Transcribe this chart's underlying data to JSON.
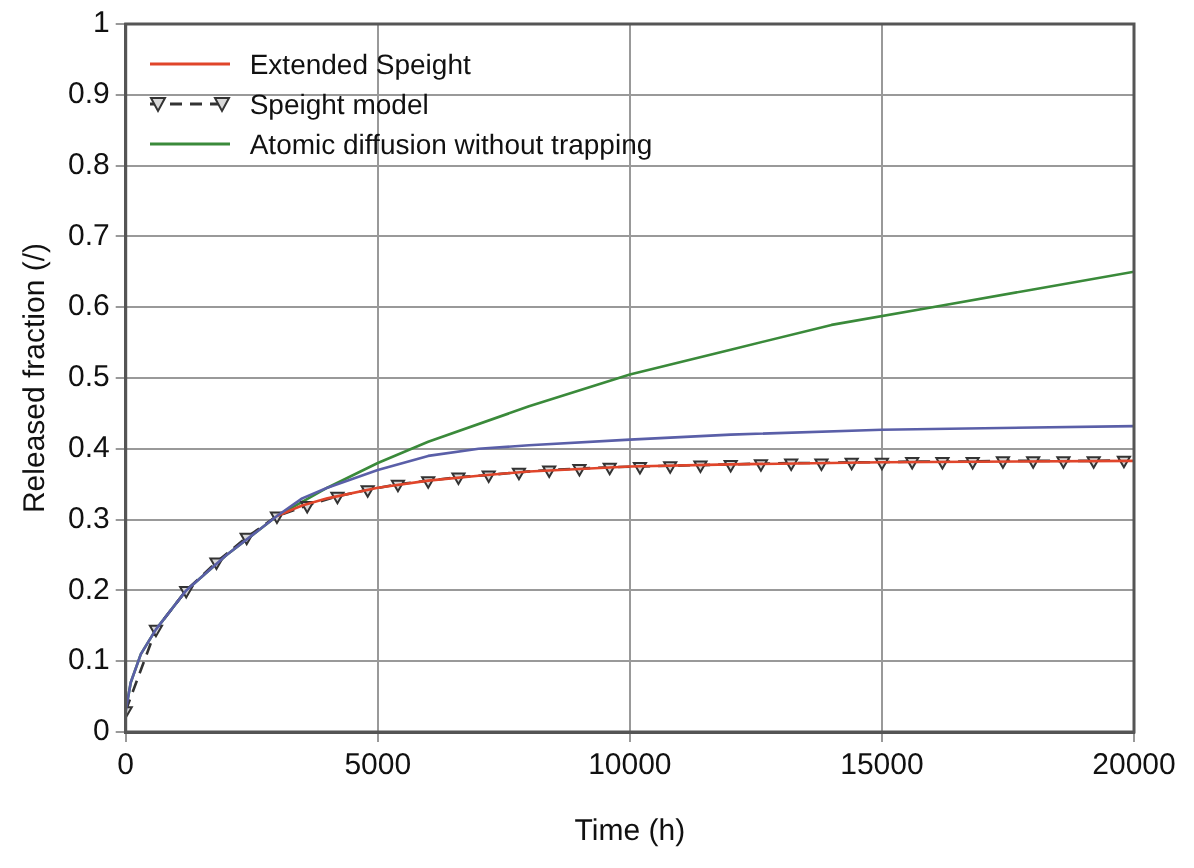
{
  "chart_data": {
    "type": "line",
    "xlabel": "Time (h)",
    "ylabel": "Released fraction (/)",
    "xlim": [
      0,
      20000
    ],
    "xticks": [
      0,
      5000,
      10000,
      15000,
      20000
    ],
    "ylim": [
      0,
      1
    ],
    "yticks": [
      0,
      0.1,
      0.2,
      0.3,
      0.4,
      0.5,
      0.6,
      0.7,
      0.8,
      0.9,
      1
    ],
    "grid": true,
    "legend": "top left",
    "series": [
      {
        "color": "#5a5fa8",
        "line_style": "solid",
        "marker": "none",
        "x": [
          0,
          100,
          300,
          600,
          1200,
          2000,
          3000,
          3500,
          4000,
          5000,
          6000,
          7000,
          8000,
          10000,
          12000,
          15000,
          20000
        ],
        "values": [
          0.03,
          0.07,
          0.11,
          0.145,
          0.2,
          0.25,
          0.305,
          0.33,
          0.345,
          0.37,
          0.39,
          0.4,
          0.405,
          0.413,
          0.42,
          0.427,
          0.432
        ]
      },
      {
        "name": "Extended Speight",
        "color": "#e0452a",
        "line_style": "solid",
        "marker": "none",
        "x": [
          3000,
          3500,
          4000,
          5000,
          6000,
          7000,
          8000,
          10000,
          12000,
          15000,
          20000
        ],
        "values": [
          0.305,
          0.32,
          0.33,
          0.345,
          0.355,
          0.362,
          0.368,
          0.375,
          0.378,
          0.381,
          0.383
        ]
      },
      {
        "name": "Speight model",
        "color": "#333333",
        "line_style": "dashed",
        "marker": "triangle",
        "x": [
          0,
          600,
          1200,
          1800,
          2400,
          3000,
          3600,
          4200,
          4800,
          5400,
          6000,
          6600,
          7200,
          7800,
          8400,
          9000,
          9600,
          10200,
          10800,
          11400,
          12000,
          12600,
          13200,
          13800,
          14400,
          15000,
          15600,
          16200,
          16800,
          17400,
          18000,
          18600,
          19200,
          19800
        ],
        "values": [
          0.03,
          0.145,
          0.2,
          0.24,
          0.275,
          0.305,
          0.32,
          0.333,
          0.342,
          0.35,
          0.355,
          0.36,
          0.363,
          0.367,
          0.37,
          0.372,
          0.374,
          0.375,
          0.376,
          0.377,
          0.378,
          0.379,
          0.38,
          0.38,
          0.381,
          0.381,
          0.382,
          0.382,
          0.382,
          0.383,
          0.383,
          0.383,
          0.383,
          0.384
        ]
      },
      {
        "name": "Atomic diffusion without trapping",
        "color": "#3a8a3a",
        "line_style": "solid",
        "marker": "none",
        "x": [
          0,
          100,
          300,
          600,
          1200,
          2000,
          3000,
          4000,
          5000,
          6000,
          8000,
          10000,
          12000,
          14000,
          16000,
          18000,
          20000
        ],
        "values": [
          0.03,
          0.07,
          0.11,
          0.145,
          0.2,
          0.25,
          0.305,
          0.345,
          0.38,
          0.41,
          0.46,
          0.505,
          0.54,
          0.575,
          0.6,
          0.625,
          0.65
        ]
      }
    ]
  }
}
